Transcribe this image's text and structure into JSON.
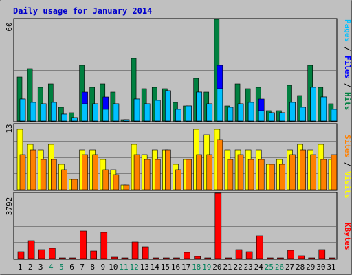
{
  "chart_data": [
    {
      "type": "bar",
      "title": "Daily usage for January 2014",
      "ylabel_parts": [
        "Pages",
        "Files",
        "Hits"
      ],
      "ylabel_separator": " / ",
      "ymax_label": "60",
      "ylim": [
        0,
        60
      ],
      "categories": [
        "1",
        "2",
        "3",
        "4",
        "5",
        "6",
        "7",
        "8",
        "9",
        "10",
        "11",
        "12",
        "13",
        "14",
        "15",
        "16",
        "17",
        "18",
        "19",
        "20",
        "21",
        "22",
        "23",
        "24",
        "25",
        "26",
        "27",
        "28",
        "29",
        "30",
        "31"
      ],
      "weekend_days": [
        "4",
        "5",
        "11",
        "12",
        "18",
        "19",
        "25",
        "26"
      ],
      "series": [
        {
          "name": "Hits",
          "color": "#008040",
          "values": [
            26,
            31,
            20,
            22,
            8,
            5,
            33,
            20,
            22,
            17,
            1,
            37,
            19,
            20,
            19,
            11,
            9,
            25,
            17,
            62,
            9,
            22,
            19,
            20,
            6,
            6,
            21,
            15,
            33,
            20,
            10
          ]
        },
        {
          "name": "Files",
          "color": "#0000ff",
          "values": [
            13,
            11,
            10,
            11,
            4,
            2,
            17,
            10,
            14,
            10,
            1,
            13,
            10,
            12,
            18,
            7,
            9,
            17,
            10,
            33,
            8,
            10,
            11,
            13,
            5,
            5,
            11,
            8,
            20,
            14,
            7
          ]
        },
        {
          "name": "Pages",
          "color": "#00c0ff",
          "values": [
            13,
            11,
            10,
            11,
            4,
            2,
            10,
            10,
            7,
            10,
            1,
            13,
            10,
            12,
            18,
            7,
            9,
            17,
            10,
            19,
            8,
            10,
            11,
            6,
            5,
            5,
            11,
            8,
            20,
            14,
            7
          ]
        }
      ]
    },
    {
      "type": "bar",
      "ylabel_parts": [
        "Sites",
        "Visits"
      ],
      "ylabel_separator": " / ",
      "ymax_label": "13",
      "ylim": [
        0,
        13
      ],
      "categories": [
        "1",
        "2",
        "3",
        "4",
        "5",
        "6",
        "7",
        "8",
        "9",
        "10",
        "11",
        "12",
        "13",
        "14",
        "15",
        "16",
        "17",
        "18",
        "19",
        "20",
        "21",
        "22",
        "23",
        "24",
        "25",
        "26",
        "27",
        "28",
        "29",
        "30",
        "31"
      ],
      "series": [
        {
          "name": "Visits",
          "color": "#ffff00",
          "values": [
            12,
            9,
            8,
            9,
            5,
            2,
            8,
            8,
            6,
            4,
            1,
            9,
            7,
            8,
            8,
            5,
            6,
            12,
            11,
            12,
            8,
            8,
            8,
            8,
            5,
            6,
            8,
            9,
            8,
            9,
            6
          ]
        },
        {
          "name": "Sites",
          "color": "#ff8000",
          "values": [
            7,
            8,
            6,
            6,
            4,
            2,
            7,
            7,
            4,
            3,
            1,
            7,
            6,
            6,
            8,
            4,
            6,
            7,
            7,
            10,
            6,
            7,
            6,
            6,
            5,
            5,
            7,
            8,
            7,
            6,
            7
          ]
        }
      ]
    },
    {
      "type": "bar",
      "ylabel_parts": [
        "KBytes"
      ],
      "ylabel_separator": "",
      "ymax_label": "3792",
      "ylim": [
        0,
        3792
      ],
      "categories": [
        "1",
        "2",
        "3",
        "4",
        "5",
        "6",
        "7",
        "8",
        "9",
        "10",
        "11",
        "12",
        "13",
        "14",
        "15",
        "16",
        "17",
        "18",
        "19",
        "20",
        "21",
        "22",
        "23",
        "24",
        "25",
        "26",
        "27",
        "28",
        "29",
        "30",
        "31"
      ],
      "series": [
        {
          "name": "KBytes",
          "color": "#ff0000",
          "values": [
            380,
            1020,
            530,
            580,
            40,
            40,
            1610,
            440,
            1520,
            60,
            40,
            970,
            660,
            40,
            40,
            40,
            360,
            100,
            40,
            3792,
            40,
            530,
            390,
            1300,
            40,
            40,
            460,
            160,
            40,
            530,
            40
          ]
        }
      ]
    }
  ]
}
